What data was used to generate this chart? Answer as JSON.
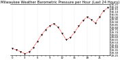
{
  "title": "Milwaukee Weather Barometric Pressure per Hour (Last 24 Hours)",
  "bg_color": "#ffffff",
  "line_color": "#ff0000",
  "marker_color": "#000000",
  "grid_color": "#cccccc",
  "hours": [
    0,
    1,
    2,
    3,
    4,
    5,
    6,
    7,
    8,
    9,
    10,
    11,
    12,
    13,
    14,
    15,
    16,
    17,
    18,
    19,
    20,
    21,
    22,
    23
  ],
  "pressure": [
    29.38,
    29.35,
    29.32,
    29.28,
    29.31,
    29.4,
    29.52,
    29.65,
    29.75,
    29.83,
    29.87,
    29.8,
    29.68,
    29.55,
    29.6,
    29.7,
    29.82,
    29.93,
    30.0,
    29.95,
    29.88,
    30.0,
    30.12,
    30.18
  ],
  "ylim_min": 29.25,
  "ylim_max": 30.25,
  "xlim_min": 0,
  "xlim_max": 23,
  "title_fontsize": 3.8,
  "tick_fontsize": 2.8,
  "linewidth": 0.5,
  "markersize": 1.5,
  "grid_linewidth": 0.3,
  "vgrid_positions": [
    0,
    3,
    6,
    9,
    12,
    15,
    18,
    21
  ]
}
